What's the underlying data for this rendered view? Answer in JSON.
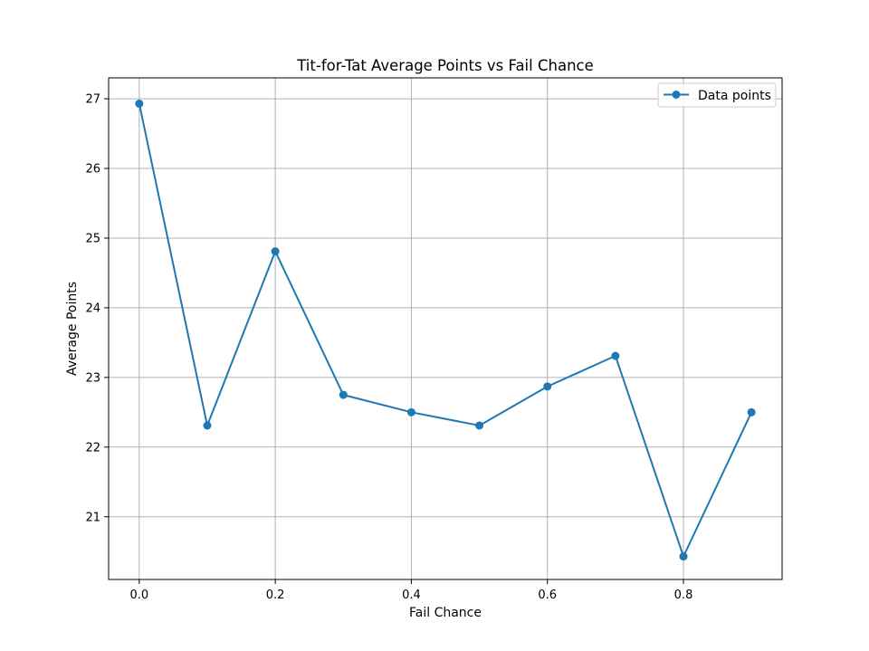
{
  "chart_data": {
    "type": "line",
    "title": "Tit-for-Tat Average Points vs Fail Chance",
    "xlabel": "Fail Chance",
    "ylabel": "Average Points",
    "x": [
      0.0,
      0.1,
      0.2,
      0.3,
      0.4,
      0.5,
      0.6,
      0.7,
      0.8,
      0.9
    ],
    "series": [
      {
        "name": "Data points",
        "values": [
          26.93,
          22.31,
          24.81,
          22.75,
          22.5,
          22.31,
          22.87,
          23.31,
          20.43,
          22.5
        ],
        "color": "#1f77b4",
        "marker": "circle"
      }
    ],
    "xlim": [
      -0.045,
      0.945
    ],
    "ylim": [
      20.1,
      27.3
    ],
    "xticks": [
      0.0,
      0.2,
      0.4,
      0.6,
      0.8
    ],
    "xtick_labels": [
      "0.0",
      "0.2",
      "0.4",
      "0.6",
      "0.8"
    ],
    "yticks": [
      21,
      22,
      23,
      24,
      25,
      26,
      27
    ],
    "ytick_labels": [
      "21",
      "22",
      "23",
      "24",
      "25",
      "26",
      "27"
    ],
    "grid": true,
    "legend_position": "upper right"
  }
}
